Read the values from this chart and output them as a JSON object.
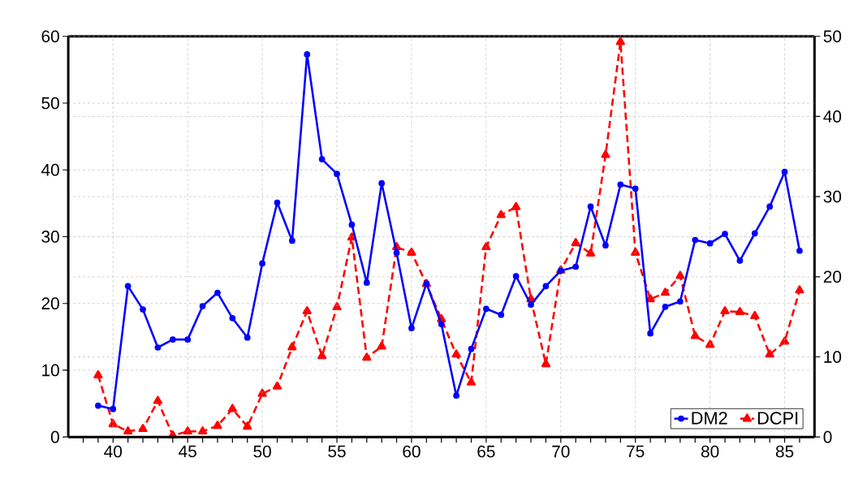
{
  "chart_data": {
    "type": "line",
    "x": [
      39,
      40,
      41,
      42,
      43,
      44,
      45,
      46,
      47,
      48,
      49,
      50,
      51,
      52,
      53,
      54,
      55,
      56,
      57,
      58,
      59,
      60,
      61,
      62,
      63,
      64,
      65,
      66,
      67,
      68,
      69,
      70,
      71,
      72,
      73,
      74,
      75,
      76,
      77,
      78,
      79,
      80,
      81,
      82,
      83,
      84,
      85,
      86
    ],
    "series": [
      {
        "name": "DM2",
        "color": "#0000ff",
        "marker": "circle",
        "line_style": "solid",
        "values": [
          4.7,
          4.2,
          22.6,
          19.1,
          13.4,
          14.6,
          14.6,
          19.6,
          21.6,
          17.8,
          14.9,
          26.0,
          35.1,
          29.4,
          57.3,
          41.6,
          39.4,
          31.8,
          23.1,
          38.0,
          27.6,
          16.3,
          23.0,
          16.9,
          6.2,
          13.2,
          19.2,
          18.3,
          24.1,
          19.8,
          22.6,
          24.9,
          25.5,
          34.5,
          28.7,
          37.8,
          37.2,
          15.5,
          19.5,
          20.3,
          29.5,
          29.0,
          30.4,
          26.4,
          30.5,
          34.5,
          39.7,
          27.9
        ]
      },
      {
        "name": "DCPI",
        "color": "#ff0000",
        "marker": "triangle",
        "line_style": "dashed",
        "axis": "y2",
        "values": [
          7.7,
          1.6,
          0.7,
          1.0,
          4.5,
          0.2,
          0.7,
          0.7,
          1.4,
          3.5,
          1.3,
          5.4,
          6.3,
          11.2,
          15.7,
          10.1,
          16.2,
          24.9,
          9.9,
          11.3,
          23.7,
          23.0,
          19.1,
          14.7,
          10.3,
          6.8,
          23.7,
          27.7,
          28.7,
          17.2,
          9.1,
          20.8,
          24.2,
          22.9,
          35.2,
          49.3,
          23.0,
          17.2,
          18.0,
          20.1,
          12.6,
          11.5,
          15.7,
          15.6,
          15.1,
          10.3,
          11.9,
          18.3
        ]
      }
    ],
    "xlim": [
      37,
      87
    ],
    "xticks": [
      {
        "value": 38,
        "label": null
      },
      {
        "value": 39,
        "label": null
      },
      40,
      {
        "value": 41,
        "label": null
      },
      {
        "value": 42,
        "label": null
      },
      {
        "value": 43,
        "label": null
      },
      {
        "value": 44,
        "label": null
      },
      45,
      {
        "value": 46,
        "label": null
      },
      {
        "value": 47,
        "label": null
      },
      {
        "value": 48,
        "label": null
      },
      {
        "value": 49,
        "label": null
      },
      50,
      {
        "value": 51,
        "label": null
      },
      {
        "value": 52,
        "label": null
      },
      {
        "value": 53,
        "label": null
      },
      {
        "value": 54,
        "label": null
      },
      55,
      {
        "value": 56,
        "label": null
      },
      {
        "value": 57,
        "label": null
      },
      {
        "value": 58,
        "label": null
      },
      {
        "value": 59,
        "label": null
      },
      60,
      {
        "value": 61,
        "label": null
      },
      {
        "value": 62,
        "label": null
      },
      {
        "value": 63,
        "label": null
      },
      {
        "value": 64,
        "label": null
      },
      65,
      {
        "value": 66,
        "label": null
      },
      {
        "value": 67,
        "label": null
      },
      {
        "value": 68,
        "label": null
      },
      {
        "value": 69,
        "label": null
      },
      70,
      {
        "value": 71,
        "label": null
      },
      {
        "value": 72,
        "label": null
      },
      {
        "value": 73,
        "label": null
      },
      {
        "value": 74,
        "label": null
      },
      75,
      {
        "value": 76,
        "label": null
      },
      {
        "value": 77,
        "label": null
      },
      {
        "value": 78,
        "label": null
      },
      {
        "value": 79,
        "label": null
      },
      80,
      {
        "value": 81,
        "label": null
      },
      {
        "value": 82,
        "label": null
      },
      {
        "value": 83,
        "label": null
      },
      {
        "value": 84,
        "label": null
      },
      85,
      {
        "value": 86,
        "label": null
      }
    ],
    "ylim": [
      0,
      60
    ],
    "yticks": [
      0,
      10,
      20,
      30,
      40,
      50,
      60
    ],
    "y2lim": [
      0,
      50
    ],
    "y2ticks": [
      0,
      10,
      20,
      30,
      40,
      50
    ],
    "grid": true,
    "legend": "bottom right"
  }
}
